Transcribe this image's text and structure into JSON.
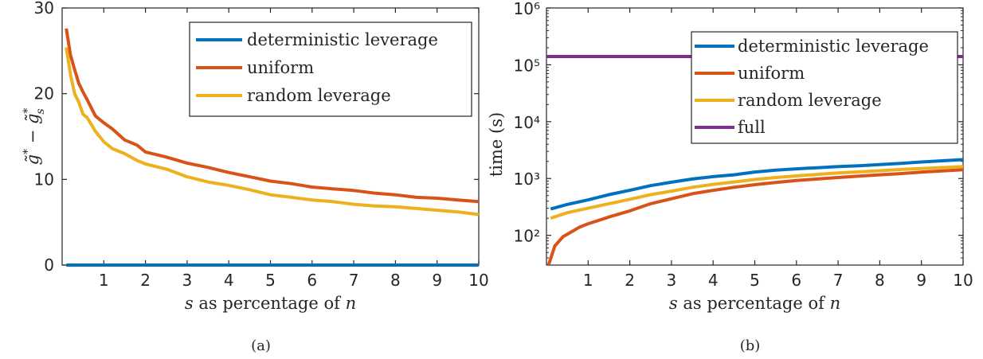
{
  "chart_data": [
    {
      "panel": "(a)",
      "type": "line",
      "xlabel_prefix": "s",
      "xlabel_mid": " as percentage of ",
      "xlabel_suffix": "n",
      "ylabel_main": "g̃",
      "ylabel_minus": " − ",
      "ylabel_sub": "s",
      "ylabel_sup": "*",
      "xlim": [
        0,
        10
      ],
      "ylim": [
        0,
        30
      ],
      "xticks": [
        1,
        2,
        3,
        4,
        5,
        6,
        7,
        8,
        9,
        10
      ],
      "yticks": [
        0,
        10,
        20,
        30
      ],
      "yscale": "linear",
      "legend_position": "top-right",
      "series": [
        {
          "name": "deterministic leverage",
          "color": "#0072BD",
          "x": [
            0.1,
            0.5,
            1,
            2,
            3,
            4,
            5,
            6,
            7,
            8,
            9,
            10
          ],
          "y": [
            0,
            0,
            0,
            0,
            0,
            0,
            0,
            0,
            0,
            0,
            0,
            0
          ]
        },
        {
          "name": "uniform",
          "color": "#D95319",
          "x": [
            0.1,
            0.2,
            0.3,
            0.4,
            0.5,
            0.6,
            0.8,
            1.0,
            1.2,
            1.5,
            1.8,
            2.0,
            2.5,
            3.0,
            3.5,
            4.0,
            4.5,
            5.0,
            5.5,
            6.0,
            6.5,
            7.0,
            7.5,
            8.0,
            8.5,
            9.0,
            9.5,
            10.0
          ],
          "y": [
            27.6,
            24.5,
            22.8,
            21.2,
            20.2,
            19.3,
            17.4,
            16.6,
            15.9,
            14.6,
            14.0,
            13.2,
            12.6,
            11.9,
            11.4,
            10.8,
            10.3,
            9.8,
            9.5,
            9.1,
            8.9,
            8.7,
            8.4,
            8.2,
            7.9,
            7.8,
            7.6,
            7.4
          ]
        },
        {
          "name": "random leverage",
          "color": "#EDB120",
          "x": [
            0.1,
            0.2,
            0.3,
            0.4,
            0.5,
            0.6,
            0.8,
            1.0,
            1.2,
            1.5,
            1.8,
            2.0,
            2.5,
            3.0,
            3.5,
            4.0,
            4.5,
            5.0,
            5.5,
            6.0,
            6.5,
            7.0,
            7.5,
            8.0,
            8.5,
            9.0,
            9.5,
            10.0
          ],
          "y": [
            25.4,
            22.2,
            20.0,
            19.0,
            17.6,
            17.2,
            15.6,
            14.4,
            13.6,
            13.0,
            12.2,
            11.8,
            11.2,
            10.3,
            9.7,
            9.3,
            8.8,
            8.2,
            7.9,
            7.6,
            7.4,
            7.1,
            6.9,
            6.8,
            6.6,
            6.4,
            6.2,
            5.9
          ]
        }
      ]
    },
    {
      "panel": "(b)",
      "type": "line",
      "xlabel_prefix": "s",
      "xlabel_mid": " as percentage of ",
      "xlabel_suffix": "n",
      "ylabel": "time (s)",
      "xlim": [
        0,
        10
      ],
      "ylim": [
        30,
        1000000
      ],
      "yscale": "log",
      "xticks": [
        1,
        2,
        3,
        4,
        5,
        6,
        7,
        8,
        9,
        10
      ],
      "yticks": [
        100,
        1000,
        10000,
        100000,
        1000000
      ],
      "ytick_labels": [
        "10²",
        "10³",
        "10⁴",
        "10⁵",
        "10⁶"
      ],
      "legend_position": "top-right",
      "series": [
        {
          "name": "deterministic leverage",
          "color": "#0072BD",
          "x": [
            0.1,
            0.5,
            1,
            1.5,
            2,
            2.5,
            3,
            3.5,
            4,
            4.5,
            5,
            5.5,
            6,
            6.5,
            7,
            7.5,
            8,
            8.5,
            9,
            9.5,
            10
          ],
          "y": [
            290,
            350,
            420,
            520,
            620,
            750,
            860,
            980,
            1080,
            1160,
            1300,
            1400,
            1480,
            1550,
            1620,
            1680,
            1760,
            1850,
            1950,
            2050,
            2150
          ]
        },
        {
          "name": "uniform",
          "color": "#D95319",
          "x": [
            0.05,
            0.2,
            0.4,
            0.6,
            0.8,
            1.0,
            1.5,
            2.0,
            2.5,
            3.0,
            3.5,
            4.0,
            4.5,
            5.0,
            5.5,
            6.0,
            6.5,
            7.0,
            7.5,
            8.0,
            8.5,
            9.0,
            9.5,
            10.0
          ],
          "y": [
            30,
            65,
            95,
            115,
            140,
            160,
            210,
            270,
            360,
            440,
            540,
            620,
            700,
            780,
            850,
            920,
            980,
            1040,
            1100,
            1160,
            1220,
            1290,
            1360,
            1430
          ]
        },
        {
          "name": "random leverage",
          "color": "#EDB120",
          "x": [
            0.1,
            0.5,
            1,
            1.5,
            2,
            2.5,
            3,
            3.5,
            4,
            4.5,
            5,
            5.5,
            6,
            6.5,
            7,
            7.5,
            8,
            8.5,
            9,
            9.5,
            10
          ],
          "y": [
            200,
            250,
            300,
            360,
            430,
            520,
            600,
            700,
            790,
            870,
            960,
            1040,
            1110,
            1180,
            1250,
            1310,
            1370,
            1440,
            1500,
            1560,
            1620
          ]
        },
        {
          "name": "full",
          "color": "#7E2F8E",
          "x": [
            0,
            10
          ],
          "y": [
            140000,
            140000
          ]
        }
      ]
    }
  ]
}
